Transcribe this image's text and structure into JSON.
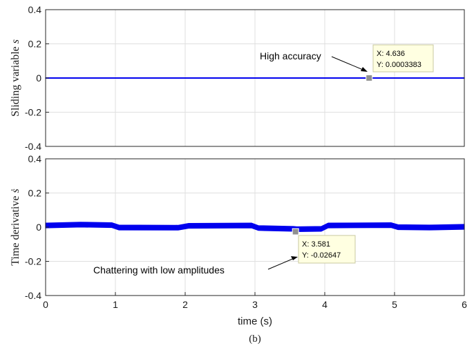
{
  "caption": "(b)",
  "chart_data": [
    {
      "type": "line",
      "ylabel": "Sliding variable s",
      "ylabel_text": "Sliding variable ",
      "ylabel_symbol": "s",
      "xlim": [
        0,
        6
      ],
      "ylim": [
        -0.4,
        0.4
      ],
      "xticks": [
        "0",
        "1",
        "2",
        "3",
        "4",
        "5",
        "6"
      ],
      "yticks": [
        "0.4",
        "0.2",
        "0",
        "-0.2",
        "-0.4"
      ],
      "grid": true,
      "series": [
        {
          "color": "#0000ee",
          "band_amplitude": 0.0015,
          "x": [
            0,
            6
          ],
          "y": [
            0.0,
            0.0
          ]
        }
      ],
      "annotation": "High accuracy",
      "datatip": {
        "x": 4.636,
        "y": 0.0003383,
        "x_text": "X: 4.636",
        "y_text": "Y: 0.0003383"
      }
    },
    {
      "type": "line",
      "ylabel": "Time derivative ṡ",
      "ylabel_text": "Time derivative ",
      "ylabel_symbol": "ṡ",
      "xlabel": "time (s)",
      "xlim": [
        0,
        6
      ],
      "ylim": [
        -0.4,
        0.4
      ],
      "xticks": [
        "0",
        "1",
        "2",
        "3",
        "4",
        "5",
        "6"
      ],
      "yticks": [
        "0.4",
        "0.2",
        "0",
        "-0.2",
        "-0.4"
      ],
      "grid": true,
      "series": [
        {
          "color": "#0000ee",
          "band_amplitude": 0.014,
          "x": [
            0,
            0.5,
            0.95,
            1.05,
            1.9,
            2.05,
            2.95,
            3.05,
            3.55,
            3.6,
            3.95,
            4.05,
            4.95,
            5.05,
            5.5,
            6
          ],
          "y": [
            0.01,
            0.015,
            0.012,
            -0.002,
            -0.003,
            0.008,
            0.01,
            -0.005,
            -0.01,
            -0.012,
            -0.01,
            0.01,
            0.012,
            0.0,
            -0.002,
            0.002
          ]
        }
      ],
      "annotation": "Chattering with low amplitudes",
      "datatip": {
        "x": 3.581,
        "y": -0.02647,
        "x_text": "X: 3.581",
        "y_text": "Y: -0.02647"
      }
    }
  ]
}
